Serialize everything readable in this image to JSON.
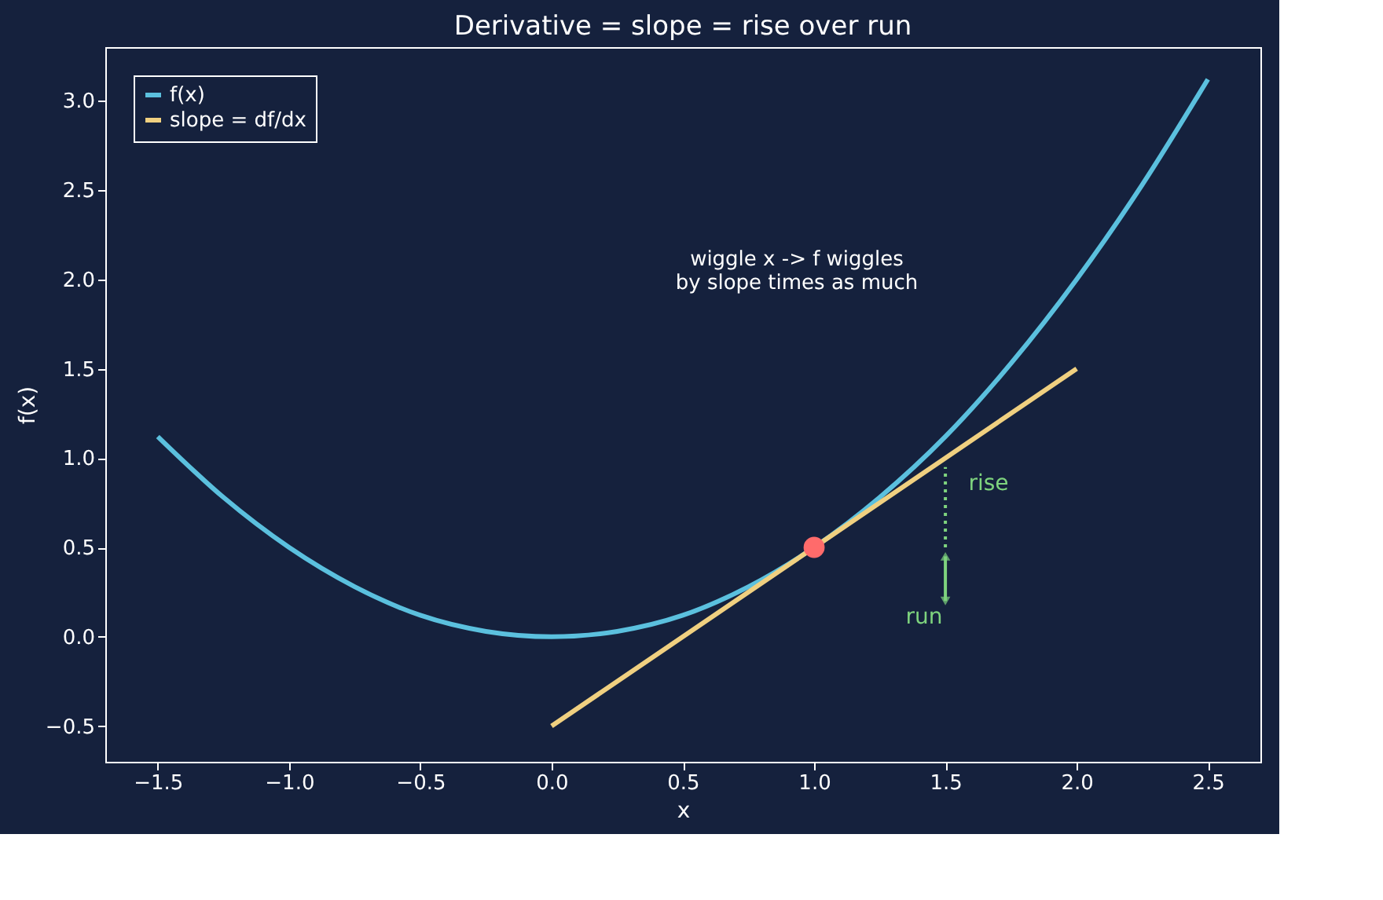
{
  "chart_data": {
    "type": "line",
    "title": "Derivative = slope = rise over run",
    "xlabel": "x",
    "ylabel": "f(x)",
    "xlim": [
      -1.7,
      2.7
    ],
    "ylim": [
      -0.7,
      3.3
    ],
    "xticks": [
      {
        "value": -1.5,
        "label": "−1.5"
      },
      {
        "value": -1.0,
        "label": "−1.0"
      },
      {
        "value": -0.5,
        "label": "−0.5"
      },
      {
        "value": 0,
        "label": "0.0"
      },
      0.5,
      {
        "value": 1,
        "label": "1.0"
      },
      1.5,
      {
        "value": 2,
        "label": "2.0"
      },
      2.5
    ],
    "yticks": [
      {
        "value": -0.5,
        "label": "−0.5"
      },
      {
        "value": 0,
        "label": "0.0"
      },
      0.5,
      {
        "value": 1,
        "label": "1.0"
      },
      1.5,
      {
        "value": 2,
        "label": "2.0"
      },
      2.5,
      {
        "value": 3,
        "label": "3.0"
      }
    ],
    "grid": false,
    "legend": "top left",
    "series": [
      {
        "name": "f(x)",
        "color": "#5bc0de",
        "x": [
          -1.5,
          -1.25,
          -1.0,
          -0.75,
          -0.5,
          -0.25,
          0,
          0.25,
          0.5,
          0.75,
          1.0,
          1.25,
          1.5,
          1.75,
          2.0,
          2.25,
          2.5
        ],
        "values": [
          1.12,
          0.78,
          0.5,
          0.28,
          0.12,
          0.03,
          0,
          0.03,
          0.12,
          0.28,
          0.5,
          0.78,
          1.12,
          1.53,
          2.0,
          2.53,
          3.12
        ]
      },
      {
        "name": "slope = df/dx",
        "color": "#f0d080",
        "x": [
          0,
          2
        ],
        "values": [
          -0.5,
          1.5
        ]
      },
      {
        "type": "scatter",
        "color": "#ff6b6b",
        "x": [
          1
        ],
        "values": [
          0.5
        ]
      },
      {
        "color": "#7ed37e",
        "line_style": "dotted",
        "x": [
          1.5,
          1.5
        ],
        "values": [
          0.5,
          0.95
        ]
      },
      {
        "color": "#7ed37e",
        "marker": "triangle",
        "x": [
          1.5,
          1.5
        ],
        "values": [
          0.2,
          0.45
        ]
      }
    ],
    "annotations": [
      "wiggle x -> f wiggles\nby slope times as much",
      "rise",
      "run"
    ]
  }
}
